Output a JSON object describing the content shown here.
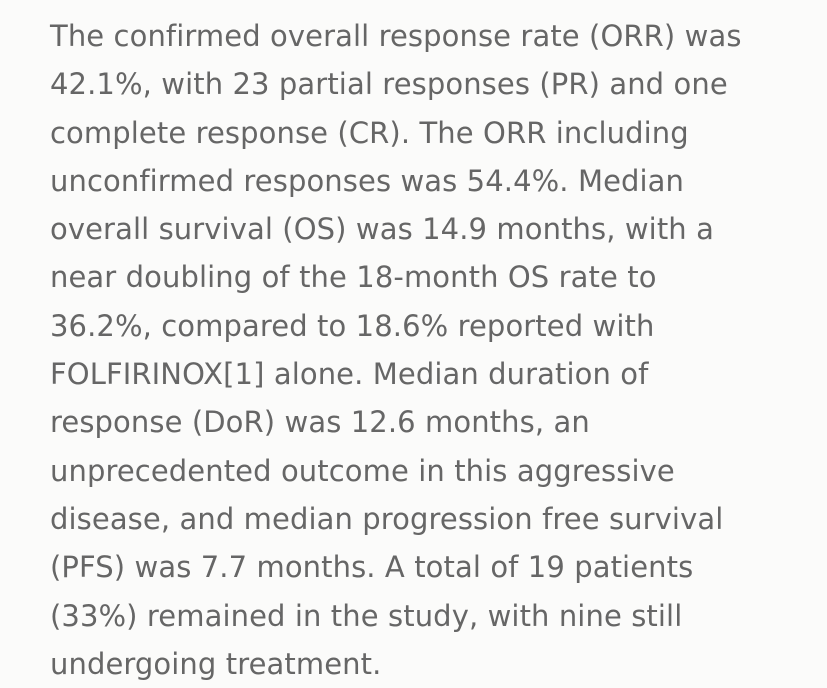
{
  "article": {
    "lines": [
      "The confirmed overall response rate (ORR) was",
      "42.1%, with 23 partial responses (PR) and one",
      "complete response (CR). The ORR including",
      "unconfirmed responses was 54.4%. Median",
      "overall survival (OS) was 14.9 months, with a",
      "near doubling of the 18-month OS rate to",
      "36.2%, compared to 18.6% reported with",
      "FOLFIRINOX[1] alone. Median duration of",
      "response (DoR) was 12.6 months, an",
      "unprecedented outcome in this aggressive",
      "disease, and median progression free survival",
      "(PFS) was 7.7 months. A total of 19 patients",
      "(33%) remained in the study, with nine still",
      "undergoing treatment."
    ]
  }
}
